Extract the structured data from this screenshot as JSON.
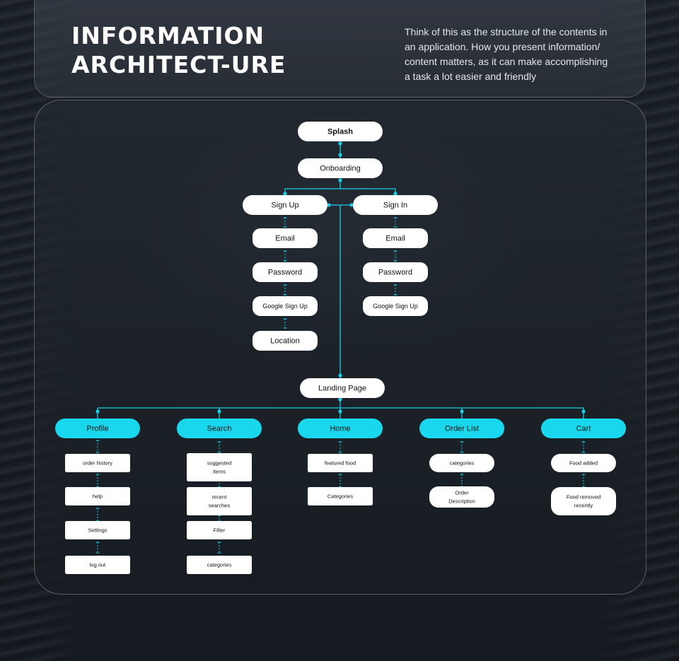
{
  "header": {
    "title_line1": "INFORMATION",
    "title_line2": "ARCHITECT-URE",
    "intro_line1": "Think of this as the structure of the contents in",
    "intro_line2": "an application. How you present information/",
    "intro_line3": "content matters, as it can make accomplishing",
    "intro_line4": "a task a lot easier and friendly"
  },
  "colors": {
    "connector": "#18d0e6",
    "primary_node": "#19d7ec",
    "white_node": "#ffffff",
    "text": "#111111"
  },
  "flow": {
    "splash": "Splash",
    "onboarding": "Onboarding",
    "sign_up": {
      "label": "Sign Up",
      "steps": [
        "Email",
        "Password",
        "Google Sign Up",
        "Location"
      ]
    },
    "sign_in": {
      "label": "Sign In",
      "steps": [
        "Email",
        "Password",
        "Google Sign Up"
      ]
    },
    "landing_page": "Landing Page"
  },
  "sections": [
    {
      "label": "Profile",
      "items": [
        [
          "order history"
        ],
        [
          "help"
        ],
        [
          "Settings"
        ],
        [
          "log out"
        ]
      ]
    },
    {
      "label": "Search",
      "items": [
        [
          "suggested",
          "items"
        ],
        [
          "recent",
          "searches"
        ],
        [
          "Filter"
        ],
        [
          "categories"
        ]
      ]
    },
    {
      "label": "Home",
      "items": [
        [
          "featured food"
        ],
        [
          "Categories"
        ]
      ]
    },
    {
      "label": "Order List",
      "items": [
        [
          "categories"
        ],
        [
          "Order",
          "Description"
        ]
      ]
    },
    {
      "label": "Cart",
      "items": [
        [
          "Food added"
        ],
        [
          "Food removed",
          "recently"
        ]
      ]
    }
  ]
}
